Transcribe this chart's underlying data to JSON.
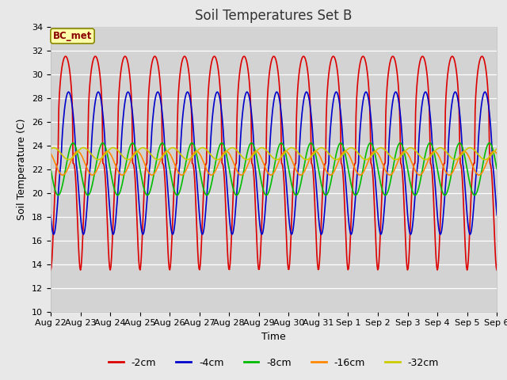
{
  "title": "Soil Temperatures Set B",
  "xlabel": "Time",
  "ylabel": "Soil Temperature (C)",
  "annotation": "BC_met",
  "ylim": [
    10,
    34
  ],
  "fig_facecolor": "#e8e8e8",
  "ax_facecolor": "#d3d3d3",
  "series_names": [
    "-2cm",
    "-4cm",
    "-8cm",
    "-16cm",
    "-32cm"
  ],
  "series_colors": [
    "#dd0000",
    "#0000cc",
    "#00bb00",
    "#ff8800",
    "#cccc00"
  ],
  "x_tick_labels": [
    "Aug 22",
    "Aug 23",
    "Aug 24",
    "Aug 25",
    "Aug 26",
    "Aug 27",
    "Aug 28",
    "Aug 29",
    "Aug 30",
    "Aug 31",
    "Sep 1",
    "Sep 2",
    "Sep 3",
    "Sep 4",
    "Sep 5",
    "Sep 6"
  ],
  "n_days": 15,
  "pts_per_day": 48,
  "amplitudes": [
    9.0,
    6.0,
    2.2,
    1.0,
    0.5
  ],
  "phases": [
    0.25,
    0.35,
    0.5,
    0.65,
    0.85
  ],
  "means": [
    22.5,
    22.5,
    22.0,
    22.5,
    23.3
  ],
  "asymmetry": [
    3.0,
    1.5,
    1.0,
    1.0,
    1.0
  ],
  "noise": [
    0.0,
    0.0,
    0.0,
    0.0,
    0.0
  ],
  "linewidth": 1.2
}
